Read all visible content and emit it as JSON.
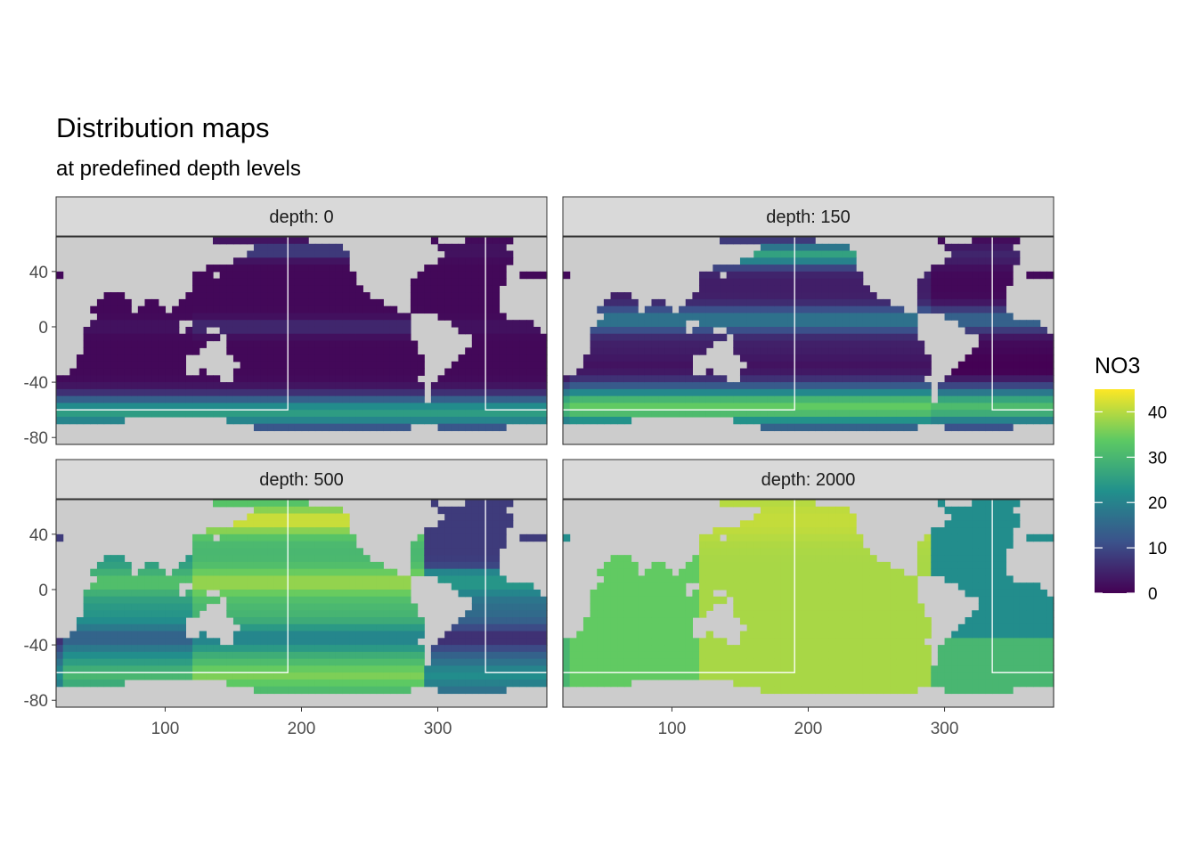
{
  "title": "Distribution maps",
  "subtitle": "at predefined depth levels",
  "colors": {
    "land": "#cccccc",
    "strip_bg": "#d9d9d9",
    "box": "#ffffff",
    "viridis": [
      "#440154",
      "#3b528b",
      "#21908c",
      "#5dc963",
      "#fde725"
    ]
  },
  "chart_data": {
    "type": "heatmap",
    "variable": "NO3",
    "x_ticks": [
      100,
      200,
      300
    ],
    "x_tick_labels": [
      "100",
      "200",
      "300"
    ],
    "y_ticks": [
      40,
      0,
      -40,
      -80
    ],
    "y_tick_labels": [
      "40",
      "0",
      "-40",
      "-80"
    ],
    "xlim": [
      20,
      380
    ],
    "ylim": [
      -85,
      65
    ],
    "region_box": {
      "lon_min": 190,
      "lon_max": 335,
      "lat_min": -60,
      "lat_max": 65
    },
    "legend": {
      "title": "NO3",
      "range": [
        0,
        45
      ],
      "ticks": [
        0,
        10,
        20,
        30,
        40
      ],
      "tick_labels": [
        "0",
        "10",
        "20",
        "30",
        "40"
      ],
      "placement": "right"
    },
    "panels": [
      {
        "label": "depth: 0",
        "depth": 0,
        "mean_no3_range": [
          0,
          28
        ]
      },
      {
        "label": "depth: 150",
        "depth": 150,
        "mean_no3_range": [
          0,
          38
        ]
      },
      {
        "label": "depth: 500",
        "depth": 500,
        "mean_no3_range": [
          8,
          44
        ]
      },
      {
        "label": "depth: 2000",
        "depth": 2000,
        "mean_no3_range": [
          18,
          42
        ]
      }
    ]
  }
}
